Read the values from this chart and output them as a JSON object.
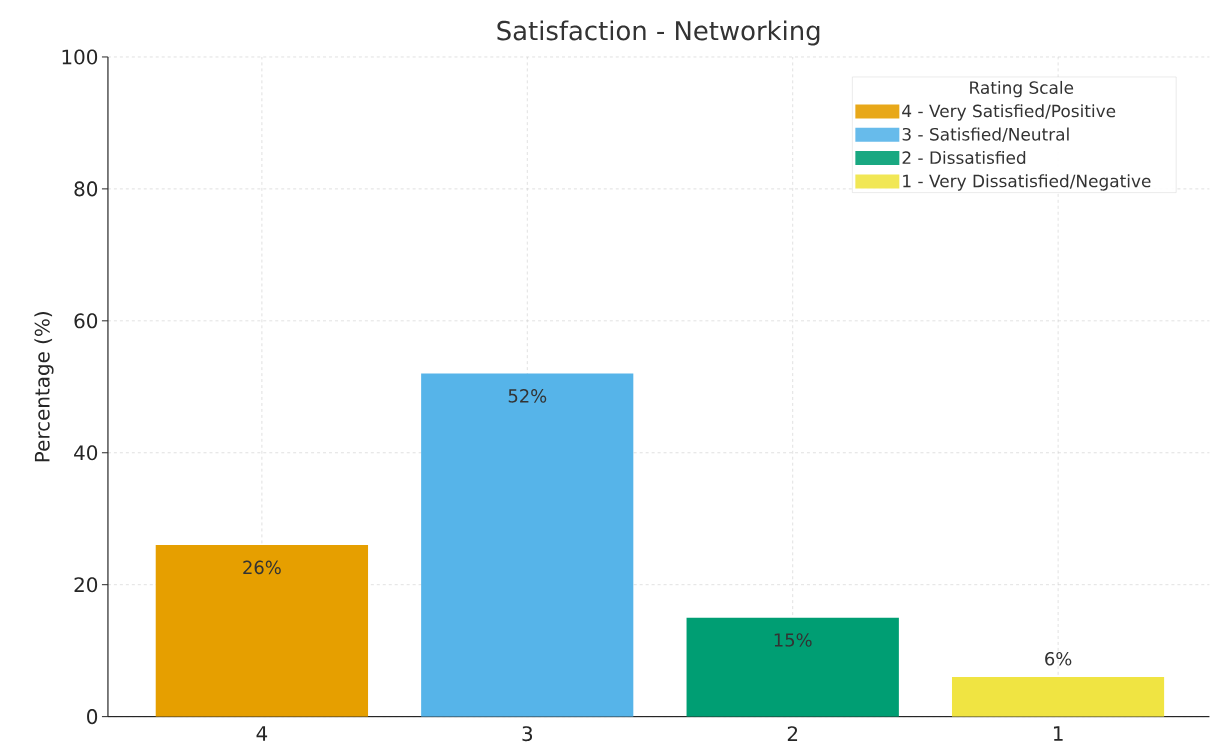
{
  "chart_data": {
    "type": "bar",
    "title": "Satisfaction - Networking",
    "ylabel": "Percentage (%)",
    "legend_title": "Rating Scale",
    "categories": [
      "4",
      "3",
      "2",
      "1"
    ],
    "series": [
      {
        "name": "4 - Very Satisfied/Positive",
        "color": "#e69f00",
        "values": [
          26,
          null,
          null,
          null
        ],
        "value_labels": [
          "26%",
          null,
          null,
          null
        ]
      },
      {
        "name": "3 - Satisfied/Neutral",
        "color": "#56b4e9",
        "values": [
          null,
          52,
          null,
          null
        ],
        "value_labels": [
          null,
          "52%",
          null,
          null
        ]
      },
      {
        "name": "2 - Dissatisfied",
        "color": "#009e73",
        "values": [
          null,
          null,
          15,
          null
        ],
        "value_labels": [
          null,
          null,
          "15%",
          null
        ]
      },
      {
        "name": "1 - Very Dissatisfied/Negative",
        "color": "#f0e442",
        "values": [
          null,
          null,
          null,
          6
        ],
        "value_labels": [
          null,
          null,
          null,
          "6%"
        ]
      }
    ],
    "ylim": [
      0,
      100
    ],
    "yticks": [
      0,
      20,
      40,
      60,
      80,
      100
    ],
    "grid": true,
    "legend": "top right"
  }
}
